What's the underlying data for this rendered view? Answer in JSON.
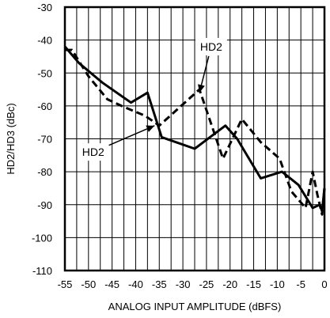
{
  "chart_data": {
    "type": "line",
    "title": "",
    "xlabel": "ANALOG INPUT AMPLITUDE (dBFS)",
    "ylabel": "HD2/HD3 (dBc)",
    "xlim": [
      -55,
      0
    ],
    "ylim": [
      -110,
      -30
    ],
    "x_ticks": [
      -55,
      -50,
      -45,
      -40,
      -35,
      -30,
      -25,
      -20,
      -15,
      -10,
      -5,
      0
    ],
    "x_tick_labels": [
      "-55",
      "-50",
      "-45",
      "-40",
      "-35",
      "-30",
      "-25",
      "-20",
      "-15",
      "-10",
      "-5",
      "0"
    ],
    "y_ticks": [
      -110,
      -100,
      -90,
      -80,
      -70,
      -60,
      -50,
      -40,
      -30
    ],
    "y_tick_labels": [
      "-110",
      "-100",
      "-90",
      "-80",
      "-70",
      "-60",
      "-50",
      "-40",
      "-30"
    ],
    "grid": true,
    "series": [
      {
        "name": "HD2",
        "style": "solid",
        "color": "#000000",
        "x": [
          -55,
          -52,
          -47,
          -41,
          -37.5,
          -34.5,
          -27.5,
          -21,
          -18.5,
          -13.5,
          -9,
          -5.5,
          -2.5,
          -1,
          -0.5,
          0
        ],
        "y": [
          -42,
          -47,
          -53,
          -59,
          -56,
          -69.5,
          -73,
          -66,
          -70,
          -82,
          -80,
          -84,
          -91,
          -90,
          -92,
          -85
        ]
      },
      {
        "name": "HD2",
        "style": "dashed",
        "color": "#000000",
        "x": [
          -55,
          -53.5,
          -50,
          -46,
          -43,
          -38,
          -35,
          -26.5,
          -21.5,
          -17.5,
          -13.5,
          -9.5,
          -7,
          -4,
          -2.5,
          -1.5,
          -0.5,
          0
        ],
        "y": [
          -43,
          -43,
          -51,
          -58,
          -60,
          -63,
          -66,
          -55,
          -76,
          -64,
          -71,
          -76,
          -86,
          -91,
          -80,
          -87,
          -93,
          -85
        ]
      }
    ],
    "annotations": [
      {
        "text": "HD2",
        "x": -24,
        "y": -42,
        "arrow_to": [
          -26.5,
          -56
        ]
      },
      {
        "text": "HD2",
        "x": -49,
        "y": -74,
        "arrow_to": [
          -36,
          -66
        ]
      }
    ]
  }
}
